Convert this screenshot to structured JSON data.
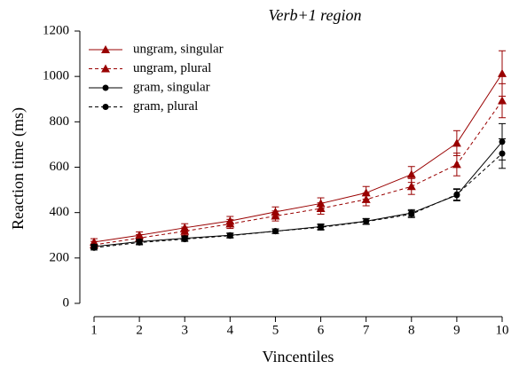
{
  "chart_data": {
    "type": "line",
    "title": "Verb+1 region",
    "x_label": "Vincentiles",
    "y_label": "Reaction time (ms)",
    "x": [
      1,
      2,
      3,
      4,
      5,
      6,
      7,
      8,
      9,
      10
    ],
    "xlim": [
      1,
      10
    ],
    "xticks": [
      1,
      2,
      3,
      4,
      5,
      6,
      7,
      8,
      9,
      10
    ],
    "ylim": [
      0,
      1200
    ],
    "yticks": [
      0,
      200,
      400,
      600,
      800,
      1000,
      1200
    ],
    "legend": "upper left",
    "series": [
      {
        "name": "ungram, singular",
        "color": "#990000",
        "dashed": false,
        "marker": "triangle",
        "values": [
          270,
          300,
          333,
          363,
          403,
          440,
          487,
          568,
          706,
          1013
        ],
        "errors": [
          15,
          15,
          18,
          20,
          22,
          25,
          28,
          35,
          55,
          100
        ]
      },
      {
        "name": "ungram, plural",
        "color": "#990000",
        "dashed": true,
        "marker": "triangle",
        "values": [
          258,
          288,
          318,
          350,
          385,
          418,
          458,
          515,
          612,
          893
        ],
        "errors": [
          15,
          15,
          18,
          20,
          22,
          25,
          28,
          35,
          50,
          75
        ]
      },
      {
        "name": "gram, singular",
        "color": "#000000",
        "dashed": false,
        "marker": "circle",
        "values": [
          250,
          272,
          287,
          300,
          318,
          338,
          362,
          398,
          477,
          712
        ],
        "errors": [
          10,
          10,
          10,
          10,
          10,
          12,
          12,
          15,
          25,
          80
        ]
      },
      {
        "name": "gram, plural",
        "color": "#000000",
        "dashed": true,
        "marker": "circle",
        "values": [
          245,
          268,
          283,
          298,
          318,
          335,
          360,
          393,
          480,
          660
        ],
        "errors": [
          10,
          10,
          10,
          10,
          10,
          12,
          12,
          15,
          25,
          65
        ]
      }
    ]
  }
}
